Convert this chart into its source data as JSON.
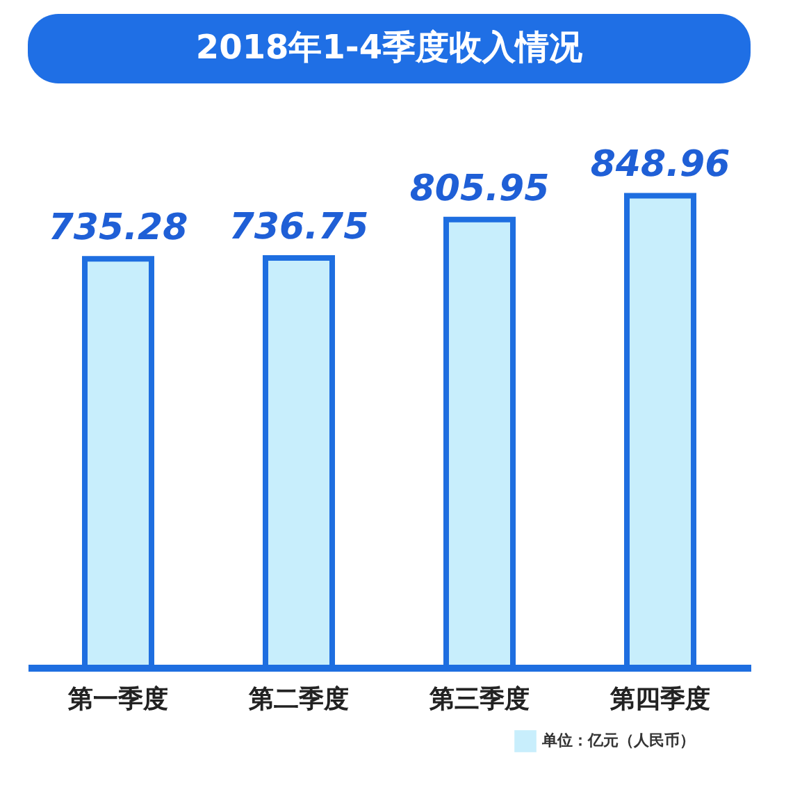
{
  "chart_data": {
    "type": "bar",
    "title": "2018年1-4季度收入情况",
    "categories": [
      "第一季度",
      "第二季度",
      "第三季度",
      "第四季度"
    ],
    "series": [
      {
        "name": "单位：亿元（人民币）",
        "color": "#c8eefc",
        "values": [
          735.28,
          736.75,
          805.95,
          848.96
        ]
      }
    ],
    "data_labels": true,
    "legend": "bottom right",
    "grid": false
  }
}
